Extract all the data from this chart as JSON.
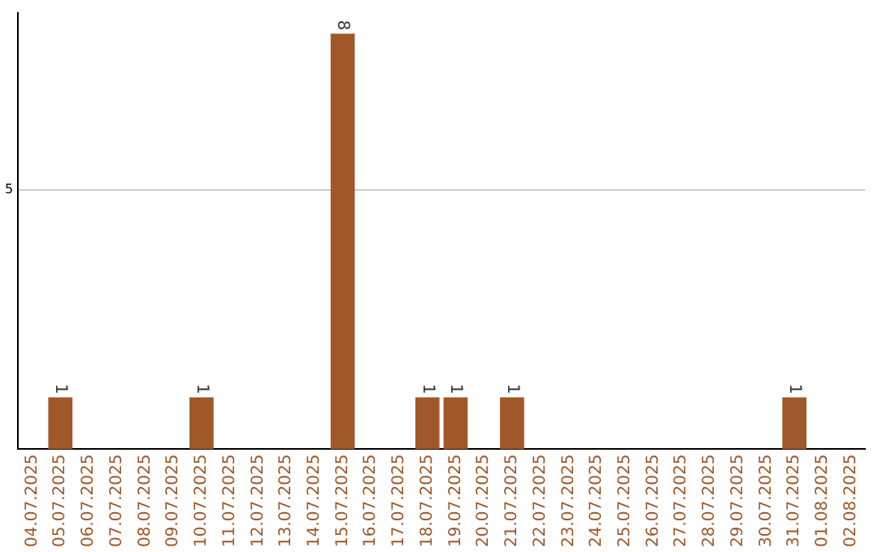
{
  "chart_data": {
    "type": "bar",
    "categories": [
      "04.07.2025",
      "05.07.2025",
      "06.07.2025",
      "07.07.2025",
      "08.07.2025",
      "09.07.2025",
      "10.07.2025",
      "11.07.2025",
      "12.07.2025",
      "13.07.2025",
      "14.07.2025",
      "15.07.2025",
      "16.07.2025",
      "17.07.2025",
      "18.07.2025",
      "19.07.2025",
      "20.07.2025",
      "21.07.2025",
      "22.07.2025",
      "23.07.2025",
      "24.07.2025",
      "25.07.2025",
      "26.07.2025",
      "27.07.2025",
      "28.07.2025",
      "29.07.2025",
      "30.07.2025",
      "31.07.2025",
      "01.08.2025",
      "02.08.2025"
    ],
    "values": [
      0,
      1,
      0,
      0,
      0,
      0,
      1,
      0,
      0,
      0,
      0,
      8,
      0,
      0,
      1,
      1,
      0,
      1,
      0,
      0,
      0,
      0,
      0,
      0,
      0,
      0,
      0,
      1,
      0,
      0
    ],
    "value_labels": [
      null,
      "1",
      null,
      null,
      null,
      null,
      "1",
      null,
      null,
      null,
      null,
      "8",
      null,
      null,
      "1",
      "1",
      null,
      "1",
      null,
      null,
      null,
      null,
      null,
      null,
      null,
      null,
      null,
      "1",
      null,
      null
    ],
    "color": "#a0572a",
    "ylim": [
      0,
      8.4
    ],
    "yticks": [
      5
    ],
    "grid": "y"
  }
}
